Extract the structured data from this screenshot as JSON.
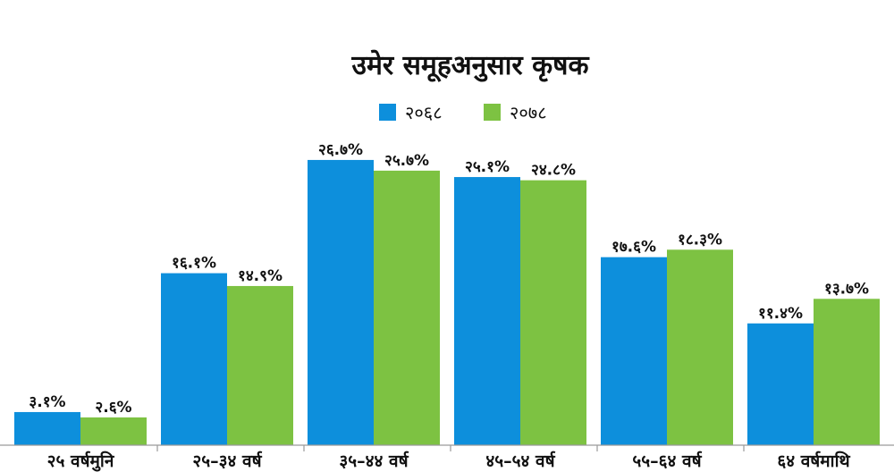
{
  "chart_data": {
    "type": "bar",
    "title": "उमेर समूहअनुसार कृषक",
    "categories": [
      "२५ वर्षमुनि",
      "२५–३४ वर्ष",
      "३५–४४ वर्ष",
      "४५–५४ वर्ष",
      "५५–६४ वर्ष",
      "६४ वर्षमाथि"
    ],
    "series": [
      {
        "name": "२०६८",
        "color": "#0d8fdc",
        "values": [
          3.1,
          16.1,
          26.7,
          25.1,
          17.6,
          11.4
        ],
        "labels": [
          "३.१%",
          "१६.१%",
          "२६.७%",
          "२५.१%",
          "१७.६%",
          "११.४%"
        ]
      },
      {
        "name": "२०७८",
        "color": "#7dc242",
        "values": [
          2.6,
          14.9,
          25.7,
          24.8,
          18.3,
          13.7
        ],
        "labels": [
          "२.६%",
          "१४.९%",
          "२५.७%",
          "२४.८%",
          "१८.३%",
          "१३.७%"
        ]
      }
    ],
    "ylim": [
      0,
      30
    ],
    "legend": "top-center",
    "grid": false
  }
}
